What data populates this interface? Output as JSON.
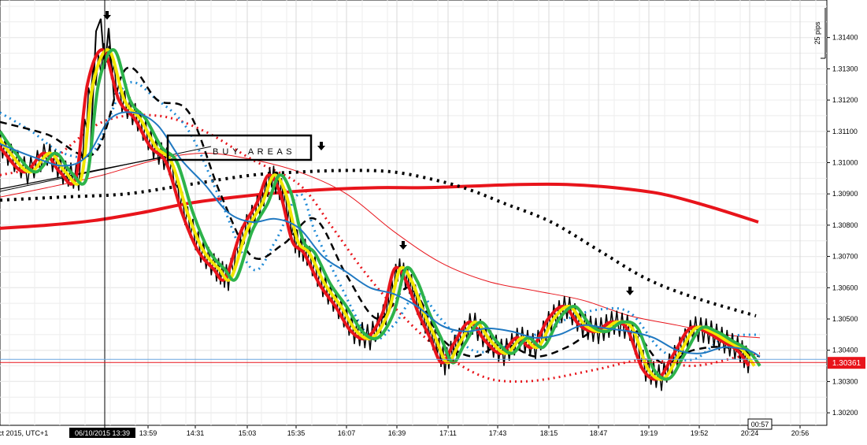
{
  "chart_data": {
    "type": "line",
    "instrument_note": "",
    "x_ticks": [
      "13:59",
      "14:31",
      "15:03",
      "15:35",
      "16:07",
      "16:39",
      "17:11",
      "17:43",
      "18:15",
      "18:47",
      "19:19",
      "19:52",
      "20:24",
      "20:56"
    ],
    "x_first_label": "ct 2015, UTC+1",
    "crosshair_time": "06/10/2015 13:39",
    "y_ticks": [
      "1.31400",
      "1.31300",
      "1.31200",
      "1.31100",
      "1.31000",
      "1.30900",
      "1.30800",
      "1.30700",
      "1.30600",
      "1.30500",
      "1.30400",
      "1.30300",
      "1.30200"
    ],
    "ylim": [
      1.3016,
      1.3152
    ],
    "current_price": "1.30361",
    "current_price_value": 1.30361,
    "countdown": "00:57",
    "scale_label": "25 pips",
    "annotation": "B U Y   A R E A S",
    "colors": {
      "red": "#e8141b",
      "yellow": "#f2e600",
      "green": "#2db34a",
      "blue": "#1f78c1",
      "dotted_blue": "#1f8ad6",
      "black": "#000000",
      "price_tag": "#e8141b"
    },
    "series": [
      {
        "line": "thick-red",
        "x": [
          0,
          60,
          120,
          180,
          240,
          300,
          360,
          420,
          480,
          540,
          600,
          660,
          720,
          780,
          840,
          900,
          963
        ],
        "y": [
          1.3079,
          1.308,
          1.30815,
          1.3084,
          1.3087,
          1.3089,
          1.30905,
          1.30915,
          1.3092,
          1.3092,
          1.30925,
          1.3093,
          1.3093,
          1.3092,
          1.309,
          1.3086,
          1.3081
        ]
      },
      {
        "line": "black-dotted-slow",
        "x": [
          0,
          80,
          160,
          240,
          320,
          380,
          440,
          500,
          560,
          600,
          640,
          700,
          760,
          820,
          880,
          960
        ],
        "y": [
          1.3088,
          1.3089,
          1.309,
          1.3093,
          1.3096,
          1.3097,
          1.30975,
          1.3097,
          1.3094,
          1.3091,
          1.3087,
          1.3081,
          1.3072,
          1.3063,
          1.3057,
          1.3051
        ]
      },
      {
        "line": "thin-red",
        "x": [
          0,
          60,
          130,
          200,
          260,
          320,
          380,
          440,
          500,
          560,
          620,
          680,
          740,
          800,
          860,
          920,
          965
        ],
        "y": [
          1.3089,
          1.3092,
          1.3096,
          1.3101,
          1.3103,
          1.3101,
          1.3097,
          1.309,
          1.3078,
          1.3068,
          1.3062,
          1.3059,
          1.3056,
          1.3051,
          1.3048,
          1.3045,
          1.3044
        ]
      },
      {
        "line": "blue",
        "x": [
          0,
          40,
          80,
          110,
          140,
          170,
          200,
          230,
          260,
          290,
          320,
          350,
          380,
          410,
          440,
          470,
          500,
          530,
          560,
          590,
          620,
          650,
          680,
          710,
          740,
          770,
          800,
          830,
          860,
          890,
          920,
          950,
          965
        ],
        "y": [
          1.3106,
          1.3102,
          1.3099,
          1.3102,
          1.3114,
          1.3116,
          1.3112,
          1.3101,
          1.3093,
          1.3084,
          1.3081,
          1.3082,
          1.3079,
          1.307,
          1.3065,
          1.306,
          1.3058,
          1.3054,
          1.3048,
          1.3046,
          1.3047,
          1.3046,
          1.3044,
          1.3045,
          1.3048,
          1.3047,
          1.3046,
          1.3044,
          1.304,
          1.3039,
          1.3041,
          1.304,
          1.3038
        ]
      },
      {
        "line": "green",
        "x": [
          0,
          20,
          45,
          70,
          90,
          110,
          125,
          145,
          165,
          185,
          205,
          225,
          245,
          265,
          285,
          300,
          320,
          340,
          355,
          370,
          385,
          400,
          420,
          440,
          460,
          480,
          500,
          515,
          530,
          545,
          560,
          575,
          590,
          610,
          630,
          650,
          670,
          690,
          710,
          730,
          750,
          770,
          790,
          810,
          830,
          850,
          870,
          890,
          910,
          930,
          950,
          965
        ],
        "y": [
          1.311,
          1.3103,
          1.3097,
          1.3103,
          1.3097,
          1.3095,
          1.3125,
          1.3136,
          1.312,
          1.3114,
          1.3105,
          1.31,
          1.3084,
          1.3072,
          1.3066,
          1.3063,
          1.3078,
          1.3087,
          1.3096,
          1.309,
          1.3075,
          1.3071,
          1.3061,
          1.3054,
          1.3046,
          1.3044,
          1.3052,
          1.3066,
          1.3062,
          1.3052,
          1.3044,
          1.3036,
          1.3042,
          1.3049,
          1.3043,
          1.3039,
          1.3044,
          1.3041,
          1.305,
          1.3054,
          1.3048,
          1.3046,
          1.3049,
          1.3047,
          1.3034,
          1.3031,
          1.3039,
          1.3047,
          1.3046,
          1.3043,
          1.304,
          1.3035
        ]
      }
    ],
    "arrows_x": [
      136,
      408,
      512,
      800
    ],
    "buy_box": {
      "x1_time": "14:20",
      "x2_time": "15:40",
      "y_top": 1.31045,
      "y_bottom": 1.30975
    }
  }
}
